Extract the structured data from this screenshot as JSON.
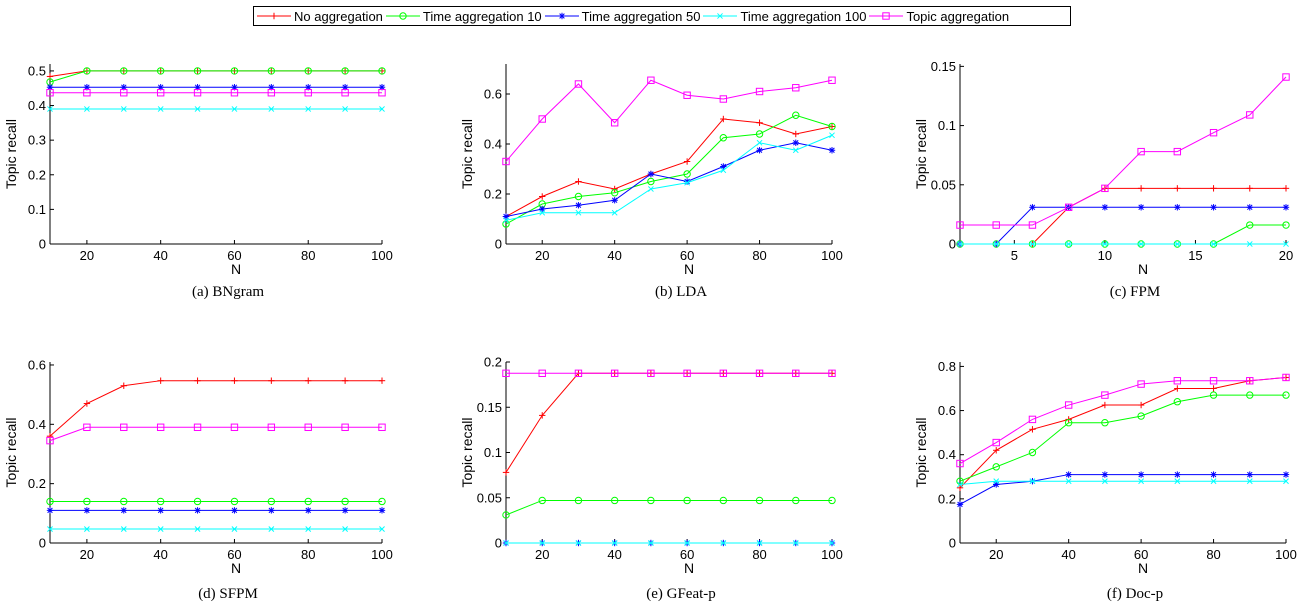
{
  "legend": [
    {
      "name": "No aggregation",
      "color": "#ff0000",
      "marker": "plus"
    },
    {
      "name": "Time aggregation 10",
      "color": "#00ff00",
      "marker": "circle"
    },
    {
      "name": "Time aggregation 50",
      "color": "#0000ff",
      "marker": "star"
    },
    {
      "name": "Time aggregation 100",
      "color": "#00ffff",
      "marker": "x"
    },
    {
      "name": "Topic aggregation",
      "color": "#ff00ff",
      "marker": "square"
    }
  ],
  "chart_data": [
    {
      "type": "line",
      "caption": "(a)  BNgram",
      "xlabel": "N",
      "ylabel": "Topic recall",
      "xlim": [
        10,
        100
      ],
      "ylim": [
        0,
        0.52
      ],
      "xticks": [
        20,
        40,
        60,
        80,
        100
      ],
      "xtick_labels": [
        "20",
        "40",
        "60",
        "80",
        "100"
      ],
      "yticks": [
        0,
        0.1,
        0.2,
        0.3,
        0.4,
        0.5
      ],
      "ytick_labels": [
        "0",
        "0.1",
        "0.2",
        "0.3",
        "0.4",
        "0.5"
      ],
      "x": [
        10,
        20,
        30,
        40,
        50,
        60,
        70,
        80,
        90,
        100
      ],
      "series": [
        {
          "name": "No aggregation",
          "values": [
            0.484,
            0.5,
            0.5,
            0.5,
            0.5,
            0.5,
            0.5,
            0.5,
            0.5,
            0.5
          ]
        },
        {
          "name": "Time aggregation 10",
          "values": [
            0.468,
            0.5,
            0.5,
            0.5,
            0.5,
            0.5,
            0.5,
            0.5,
            0.5,
            0.5
          ]
        },
        {
          "name": "Time aggregation 50",
          "values": [
            0.453,
            0.453,
            0.453,
            0.453,
            0.453,
            0.453,
            0.453,
            0.453,
            0.453,
            0.453
          ]
        },
        {
          "name": "Time aggregation 100",
          "values": [
            0.39,
            0.39,
            0.39,
            0.39,
            0.39,
            0.39,
            0.39,
            0.39,
            0.39,
            0.39
          ]
        },
        {
          "name": "Topic aggregation",
          "values": [
            0.437,
            0.437,
            0.437,
            0.437,
            0.437,
            0.437,
            0.437,
            0.437,
            0.437,
            0.437
          ]
        }
      ]
    },
    {
      "type": "line",
      "caption": "(b)  LDA",
      "xlabel": "N",
      "ylabel": "Topic recall",
      "xlim": [
        10,
        100
      ],
      "ylim": [
        0,
        0.72
      ],
      "xticks": [
        20,
        40,
        60,
        80,
        100
      ],
      "xtick_labels": [
        "20",
        "40",
        "60",
        "80",
        "100"
      ],
      "yticks": [
        0,
        0.2,
        0.4,
        0.6
      ],
      "ytick_labels": [
        "0",
        "0.2",
        "0.4",
        "0.6"
      ],
      "x": [
        10,
        20,
        30,
        40,
        50,
        60,
        70,
        80,
        90,
        100
      ],
      "series": [
        {
          "name": "No aggregation",
          "values": [
            0.11,
            0.19,
            0.25,
            0.22,
            0.28,
            0.33,
            0.5,
            0.485,
            0.44,
            0.47
          ]
        },
        {
          "name": "Time aggregation 10",
          "values": [
            0.08,
            0.16,
            0.19,
            0.205,
            0.25,
            0.28,
            0.425,
            0.44,
            0.515,
            0.47
          ]
        },
        {
          "name": "Time aggregation 50",
          "values": [
            0.11,
            0.14,
            0.155,
            0.175,
            0.28,
            0.25,
            0.31,
            0.375,
            0.405,
            0.375
          ]
        },
        {
          "name": "Time aggregation 100",
          "values": [
            0.095,
            0.125,
            0.125,
            0.125,
            0.22,
            0.245,
            0.295,
            0.405,
            0.375,
            0.435
          ]
        },
        {
          "name": "Topic aggregation",
          "values": [
            0.33,
            0.5,
            0.64,
            0.485,
            0.655,
            0.595,
            0.58,
            0.61,
            0.625,
            0.655
          ]
        }
      ]
    },
    {
      "type": "line",
      "caption": "(c)  FPM",
      "xlabel": "N",
      "ylabel": "Topic recall",
      "xlim": [
        2,
        20
      ],
      "ylim": [
        0,
        0.152
      ],
      "xticks": [
        5,
        10,
        15,
        20
      ],
      "xtick_labels": [
        "5",
        "10",
        "15",
        "20"
      ],
      "yticks": [
        0,
        0.05,
        0.1,
        0.15
      ],
      "ytick_labels": [
        "0",
        "0.05",
        "0.1",
        "0.15"
      ],
      "x": [
        2,
        4,
        6,
        8,
        10,
        12,
        14,
        16,
        18,
        20
      ],
      "series": [
        {
          "name": "No aggregation",
          "values": [
            0,
            0,
            0,
            0.031,
            0.047,
            0.047,
            0.047,
            0.047,
            0.047,
            0.047
          ]
        },
        {
          "name": "Time aggregation 10",
          "values": [
            0,
            0,
            0,
            0,
            0,
            0,
            0,
            0,
            0.016,
            0.016
          ]
        },
        {
          "name": "Time aggregation 50",
          "values": [
            0,
            0,
            0.031,
            0.031,
            0.031,
            0.031,
            0.031,
            0.031,
            0.031,
            0.031
          ]
        },
        {
          "name": "Time aggregation 100",
          "values": [
            0,
            0,
            0,
            0,
            0,
            0,
            0,
            0,
            0,
            0
          ]
        },
        {
          "name": "Topic aggregation",
          "values": [
            0.016,
            0.016,
            0.016,
            0.031,
            0.047,
            0.078,
            0.078,
            0.094,
            0.109,
            0.141
          ]
        }
      ]
    },
    {
      "type": "line",
      "caption": "(d)  SFPM",
      "xlabel": "N",
      "ylabel": "Topic recall",
      "xlim": [
        10,
        100
      ],
      "ylim": [
        0,
        0.61
      ],
      "xticks": [
        20,
        40,
        60,
        80,
        100
      ],
      "xtick_labels": [
        "20",
        "40",
        "60",
        "80",
        "100"
      ],
      "yticks": [
        0,
        0.2,
        0.4,
        0.6
      ],
      "ytick_labels": [
        "0",
        "0.2",
        "0.4",
        "0.6"
      ],
      "x": [
        10,
        20,
        30,
        40,
        50,
        60,
        70,
        80,
        90,
        100
      ],
      "series": [
        {
          "name": "No aggregation",
          "values": [
            0.36,
            0.47,
            0.53,
            0.547,
            0.547,
            0.547,
            0.547,
            0.547,
            0.547,
            0.547
          ]
        },
        {
          "name": "Time aggregation 10",
          "values": [
            0.14,
            0.14,
            0.14,
            0.14,
            0.14,
            0.14,
            0.14,
            0.14,
            0.14,
            0.14
          ]
        },
        {
          "name": "Time aggregation 50",
          "values": [
            0.11,
            0.11,
            0.11,
            0.11,
            0.11,
            0.11,
            0.11,
            0.11,
            0.11,
            0.11
          ]
        },
        {
          "name": "Time aggregation 100",
          "values": [
            0.047,
            0.047,
            0.047,
            0.047,
            0.047,
            0.047,
            0.047,
            0.047,
            0.047,
            0.047
          ]
        },
        {
          "name": "Topic aggregation",
          "values": [
            0.345,
            0.39,
            0.39,
            0.39,
            0.39,
            0.39,
            0.39,
            0.39,
            0.39,
            0.39
          ]
        }
      ]
    },
    {
      "type": "line",
      "caption": "(e)  GFeat-p",
      "xlabel": "N",
      "ylabel": "Topic recall",
      "xlim": [
        10,
        100
      ],
      "ylim": [
        0,
        0.2
      ],
      "xticks": [
        20,
        40,
        60,
        80,
        100
      ],
      "xtick_labels": [
        "20",
        "40",
        "60",
        "80",
        "100"
      ],
      "yticks": [
        0,
        0.05,
        0.1,
        0.15,
        0.2
      ],
      "ytick_labels": [
        "0",
        "0.05",
        "0.1",
        "0.15",
        "0.2"
      ],
      "x": [
        10,
        20,
        30,
        40,
        50,
        60,
        70,
        80,
        90,
        100
      ],
      "series": [
        {
          "name": "No aggregation",
          "values": [
            0.078,
            0.141,
            0.1875,
            0.1875,
            0.1875,
            0.1875,
            0.1875,
            0.1875,
            0.1875,
            0.1875
          ]
        },
        {
          "name": "Time aggregation 10",
          "values": [
            0.031,
            0.047,
            0.047,
            0.047,
            0.047,
            0.047,
            0.047,
            0.047,
            0.047,
            0.047
          ]
        },
        {
          "name": "Time aggregation 50",
          "values": [
            0,
            0,
            0,
            0,
            0,
            0,
            0,
            0,
            0,
            0
          ]
        },
        {
          "name": "Time aggregation 100",
          "values": [
            0,
            0,
            0,
            0,
            0,
            0,
            0,
            0,
            0,
            0
          ]
        },
        {
          "name": "Topic aggregation",
          "values": [
            0.1875,
            0.1875,
            0.1875,
            0.1875,
            0.1875,
            0.1875,
            0.1875,
            0.1875,
            0.1875,
            0.1875
          ]
        }
      ]
    },
    {
      "type": "line",
      "caption": "(f)  Doc-p",
      "xlabel": "N",
      "ylabel": "Topic recall",
      "xlim": [
        10,
        100
      ],
      "ylim": [
        0,
        0.82
      ],
      "xticks": [
        20,
        40,
        60,
        80,
        100
      ],
      "xtick_labels": [
        "20",
        "40",
        "60",
        "80",
        "100"
      ],
      "yticks": [
        0,
        0.2,
        0.4,
        0.6,
        0.8
      ],
      "ytick_labels": [
        "0",
        "0.2",
        "0.4",
        "0.6",
        "0.8"
      ],
      "x": [
        10,
        20,
        30,
        40,
        50,
        60,
        70,
        80,
        90,
        100
      ],
      "series": [
        {
          "name": "No aggregation",
          "values": [
            0.25,
            0.42,
            0.515,
            0.56,
            0.625,
            0.625,
            0.7,
            0.7,
            0.735,
            0.75
          ]
        },
        {
          "name": "Time aggregation 10",
          "values": [
            0.28,
            0.345,
            0.41,
            0.545,
            0.545,
            0.575,
            0.64,
            0.67,
            0.67,
            0.67
          ]
        },
        {
          "name": "Time aggregation 50",
          "values": [
            0.175,
            0.265,
            0.28,
            0.31,
            0.31,
            0.31,
            0.31,
            0.31,
            0.31,
            0.31
          ]
        },
        {
          "name": "Time aggregation 100",
          "values": [
            0.265,
            0.28,
            0.28,
            0.28,
            0.28,
            0.28,
            0.28,
            0.28,
            0.28,
            0.28
          ]
        },
        {
          "name": "Topic aggregation",
          "values": [
            0.36,
            0.455,
            0.56,
            0.625,
            0.67,
            0.72,
            0.735,
            0.735,
            0.735,
            0.75
          ]
        }
      ]
    }
  ]
}
